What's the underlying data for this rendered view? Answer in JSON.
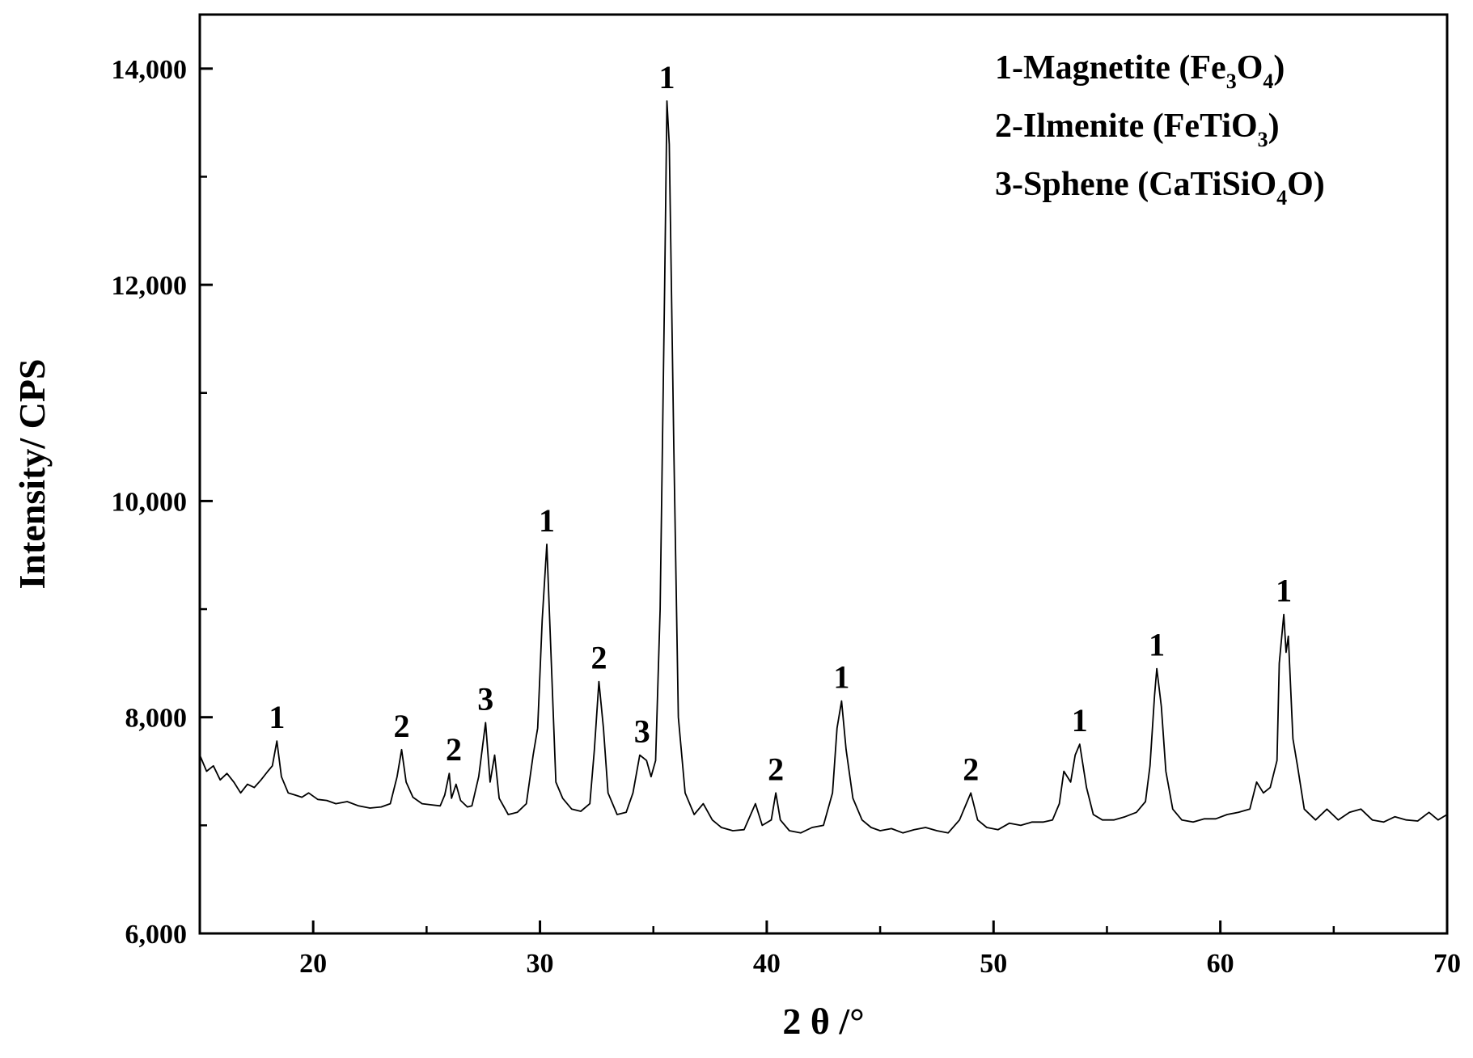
{
  "chart_data": {
    "type": "line",
    "xlabel": "2 θ /°",
    "ylabel": "Intensity/ CPS",
    "xlim": [
      15,
      70
    ],
    "ylim": [
      6000,
      14500
    ],
    "x_ticks": [
      20,
      30,
      40,
      50,
      60,
      70
    ],
    "y_ticks": [
      6000,
      8000,
      10000,
      12000,
      14000
    ],
    "y_tick_labels": [
      "6,000",
      "8,000",
      "10,000",
      "12,000",
      "14,000"
    ],
    "grid": false,
    "legend_position": "top-right",
    "legend": [
      {
        "id": "1",
        "text_pre": "1-Magnetite (Fe",
        "sub1": "3",
        "mid": "O",
        "sub2": "4",
        "post": ")"
      },
      {
        "id": "2",
        "text_pre": "2-Ilmenite (FeTiO",
        "sub1": "3",
        "mid": "",
        "sub2": "",
        "post": ")"
      },
      {
        "id": "3",
        "text_pre": "3-Sphene (CaTiSiO",
        "sub1": "4",
        "mid": "O)",
        "sub2": "",
        "post": ""
      }
    ],
    "series": [
      {
        "points": [
          [
            15.0,
            7650
          ],
          [
            15.3,
            7500
          ],
          [
            15.6,
            7550
          ],
          [
            15.9,
            7420
          ],
          [
            16.2,
            7480
          ],
          [
            16.5,
            7400
          ],
          [
            16.8,
            7300
          ],
          [
            17.1,
            7380
          ],
          [
            17.4,
            7350
          ],
          [
            17.7,
            7420
          ],
          [
            18.0,
            7500
          ],
          [
            18.2,
            7550
          ],
          [
            18.4,
            7780
          ],
          [
            18.6,
            7450
          ],
          [
            18.9,
            7300
          ],
          [
            19.2,
            7280
          ],
          [
            19.5,
            7260
          ],
          [
            19.8,
            7300
          ],
          [
            20.2,
            7240
          ],
          [
            20.6,
            7230
          ],
          [
            21.0,
            7200
          ],
          [
            21.5,
            7220
          ],
          [
            22.0,
            7180
          ],
          [
            22.5,
            7160
          ],
          [
            23.0,
            7170
          ],
          [
            23.4,
            7200
          ],
          [
            23.7,
            7450
          ],
          [
            23.9,
            7700
          ],
          [
            24.1,
            7400
          ],
          [
            24.4,
            7260
          ],
          [
            24.8,
            7200
          ],
          [
            25.2,
            7190
          ],
          [
            25.6,
            7180
          ],
          [
            25.8,
            7280
          ],
          [
            26.0,
            7480
          ],
          [
            26.1,
            7250
          ],
          [
            26.3,
            7380
          ],
          [
            26.5,
            7230
          ],
          [
            26.8,
            7170
          ],
          [
            27.0,
            7180
          ],
          [
            27.3,
            7450
          ],
          [
            27.6,
            7950
          ],
          [
            27.8,
            7400
          ],
          [
            28.0,
            7650
          ],
          [
            28.2,
            7250
          ],
          [
            28.6,
            7100
          ],
          [
            29.0,
            7120
          ],
          [
            29.4,
            7200
          ],
          [
            29.7,
            7650
          ],
          [
            29.9,
            7900
          ],
          [
            30.1,
            8900
          ],
          [
            30.3,
            9600
          ],
          [
            30.5,
            8500
          ],
          [
            30.7,
            7400
          ],
          [
            31.0,
            7250
          ],
          [
            31.4,
            7150
          ],
          [
            31.8,
            7130
          ],
          [
            32.2,
            7200
          ],
          [
            32.4,
            7700
          ],
          [
            32.6,
            8330
          ],
          [
            32.8,
            7900
          ],
          [
            33.0,
            7300
          ],
          [
            33.4,
            7100
          ],
          [
            33.8,
            7120
          ],
          [
            34.1,
            7300
          ],
          [
            34.4,
            7650
          ],
          [
            34.7,
            7600
          ],
          [
            34.9,
            7450
          ],
          [
            35.1,
            7600
          ],
          [
            35.3,
            9000
          ],
          [
            35.5,
            12000
          ],
          [
            35.6,
            13700
          ],
          [
            35.7,
            13300
          ],
          [
            35.9,
            10500
          ],
          [
            36.1,
            8000
          ],
          [
            36.4,
            7300
          ],
          [
            36.8,
            7100
          ],
          [
            37.2,
            7200
          ],
          [
            37.6,
            7050
          ],
          [
            38.0,
            6980
          ],
          [
            38.5,
            6950
          ],
          [
            39.0,
            6960
          ],
          [
            39.5,
            7200
          ],
          [
            39.8,
            7000
          ],
          [
            40.2,
            7050
          ],
          [
            40.4,
            7300
          ],
          [
            40.6,
            7050
          ],
          [
            41.0,
            6950
          ],
          [
            41.5,
            6930
          ],
          [
            42.0,
            6980
          ],
          [
            42.5,
            7000
          ],
          [
            42.9,
            7300
          ],
          [
            43.1,
            7900
          ],
          [
            43.3,
            8150
          ],
          [
            43.5,
            7700
          ],
          [
            43.8,
            7250
          ],
          [
            44.2,
            7050
          ],
          [
            44.6,
            6980
          ],
          [
            45.0,
            6950
          ],
          [
            45.5,
            6970
          ],
          [
            46.0,
            6930
          ],
          [
            46.5,
            6960
          ],
          [
            47.0,
            6980
          ],
          [
            47.5,
            6950
          ],
          [
            48.0,
            6930
          ],
          [
            48.5,
            7050
          ],
          [
            48.8,
            7200
          ],
          [
            49.0,
            7300
          ],
          [
            49.3,
            7050
          ],
          [
            49.7,
            6980
          ],
          [
            50.2,
            6960
          ],
          [
            50.7,
            7020
          ],
          [
            51.2,
            7000
          ],
          [
            51.7,
            7030
          ],
          [
            52.2,
            7030
          ],
          [
            52.6,
            7050
          ],
          [
            52.9,
            7200
          ],
          [
            53.1,
            7500
          ],
          [
            53.4,
            7400
          ],
          [
            53.6,
            7650
          ],
          [
            53.8,
            7750
          ],
          [
            54.1,
            7350
          ],
          [
            54.4,
            7100
          ],
          [
            54.8,
            7050
          ],
          [
            55.3,
            7050
          ],
          [
            55.8,
            7080
          ],
          [
            56.3,
            7120
          ],
          [
            56.7,
            7220
          ],
          [
            56.9,
            7550
          ],
          [
            57.1,
            8200
          ],
          [
            57.2,
            8450
          ],
          [
            57.4,
            8100
          ],
          [
            57.6,
            7500
          ],
          [
            57.9,
            7150
          ],
          [
            58.3,
            7050
          ],
          [
            58.8,
            7030
          ],
          [
            59.3,
            7060
          ],
          [
            59.8,
            7060
          ],
          [
            60.3,
            7100
          ],
          [
            60.8,
            7120
          ],
          [
            61.3,
            7150
          ],
          [
            61.6,
            7400
          ],
          [
            61.9,
            7300
          ],
          [
            62.2,
            7350
          ],
          [
            62.5,
            7600
          ],
          [
            62.6,
            8500
          ],
          [
            62.8,
            8950
          ],
          [
            62.9,
            8600
          ],
          [
            63.0,
            8750
          ],
          [
            63.2,
            7800
          ],
          [
            63.4,
            7550
          ],
          [
            63.7,
            7150
          ],
          [
            64.2,
            7050
          ],
          [
            64.7,
            7150
          ],
          [
            65.2,
            7050
          ],
          [
            65.7,
            7120
          ],
          [
            66.2,
            7150
          ],
          [
            66.7,
            7050
          ],
          [
            67.2,
            7030
          ],
          [
            67.7,
            7080
          ],
          [
            68.2,
            7050
          ],
          [
            68.7,
            7040
          ],
          [
            69.2,
            7120
          ],
          [
            69.6,
            7050
          ],
          [
            70.0,
            7100
          ]
        ]
      }
    ],
    "peak_labels": [
      {
        "x": 18.4,
        "y": 7780,
        "text": "1"
      },
      {
        "x": 23.9,
        "y": 7700,
        "text": "2"
      },
      {
        "x": 26.2,
        "y": 7480,
        "text": "2"
      },
      {
        "x": 27.6,
        "y": 7950,
        "text": "3"
      },
      {
        "x": 30.3,
        "y": 9600,
        "text": "1"
      },
      {
        "x": 32.6,
        "y": 8330,
        "text": "2"
      },
      {
        "x": 34.5,
        "y": 7650,
        "text": "3"
      },
      {
        "x": 35.6,
        "y": 13700,
        "text": "1"
      },
      {
        "x": 40.4,
        "y": 7300,
        "text": "2"
      },
      {
        "x": 43.3,
        "y": 8150,
        "text": "1"
      },
      {
        "x": 49.0,
        "y": 7300,
        "text": "2"
      },
      {
        "x": 53.8,
        "y": 7750,
        "text": "1"
      },
      {
        "x": 57.2,
        "y": 8450,
        "text": "1"
      },
      {
        "x": 62.8,
        "y": 8950,
        "text": "1"
      }
    ]
  }
}
